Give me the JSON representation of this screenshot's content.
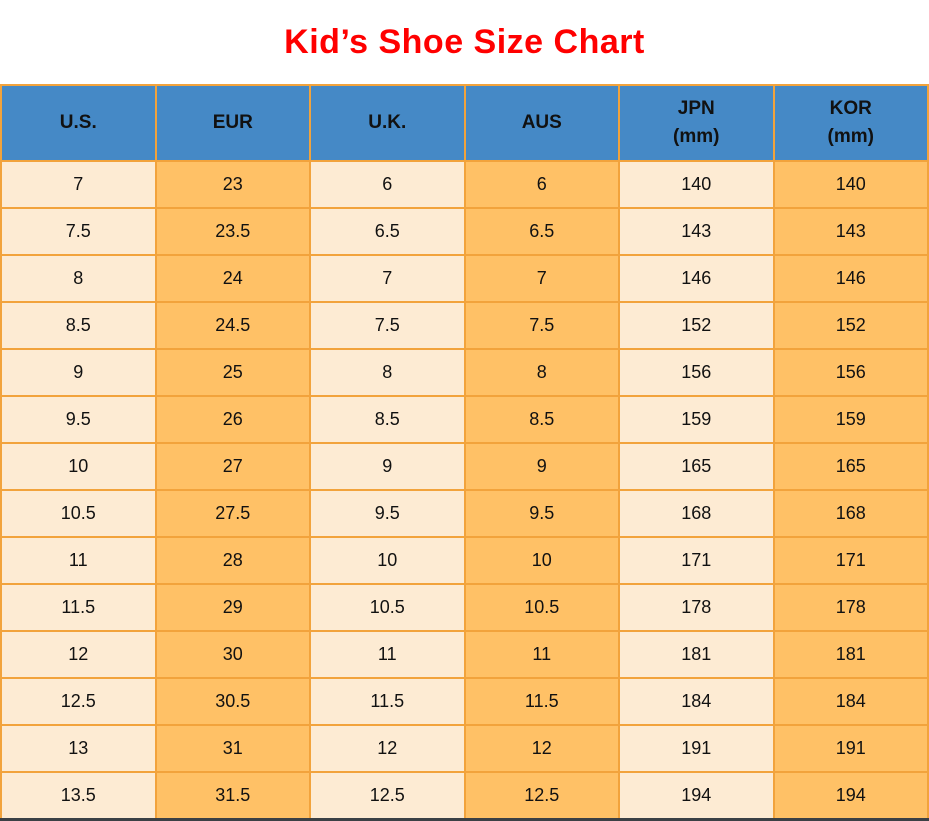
{
  "page": {
    "title": "Kid’s Shoe Size Chart"
  },
  "colors": {
    "title_red": "#FF0000",
    "header_bg": "#4589C6",
    "column_cream": "#FDEBD3",
    "column_orange": "#FFC166",
    "grid_border": "#F2A33C",
    "bottom_bar": "#3B4045",
    "text": "#111111"
  },
  "chart_data": {
    "type": "table",
    "title": "Kid’s Shoe Size Chart",
    "columns": [
      "U.S.",
      "EUR",
      "U.K.",
      "AUS",
      "JPN\n(mm)",
      "KOR\n(mm)"
    ],
    "rows": [
      [
        "7",
        "23",
        "6",
        "6",
        "140",
        "140"
      ],
      [
        "7.5",
        "23.5",
        "6.5",
        "6.5",
        "143",
        "143"
      ],
      [
        "8",
        "24",
        "7",
        "7",
        "146",
        "146"
      ],
      [
        "8.5",
        "24.5",
        "7.5",
        "7.5",
        "152",
        "152"
      ],
      [
        "9",
        "25",
        "8",
        "8",
        "156",
        "156"
      ],
      [
        "9.5",
        "26",
        "8.5",
        "8.5",
        "159",
        "159"
      ],
      [
        "10",
        "27",
        "9",
        "9",
        "165",
        "165"
      ],
      [
        "10.5",
        "27.5",
        "9.5",
        "9.5",
        "168",
        "168"
      ],
      [
        "11",
        "28",
        "10",
        "10",
        "171",
        "171"
      ],
      [
        "11.5",
        "29",
        "10.5",
        "10.5",
        "178",
        "178"
      ],
      [
        "12",
        "30",
        "11",
        "11",
        "181",
        "181"
      ],
      [
        "12.5",
        "30.5",
        "11.5",
        "11.5",
        "184",
        "184"
      ],
      [
        "13",
        "31",
        "12",
        "12",
        "191",
        "191"
      ],
      [
        "13.5",
        "31.5",
        "12.5",
        "12.5",
        "194",
        "194"
      ]
    ]
  }
}
